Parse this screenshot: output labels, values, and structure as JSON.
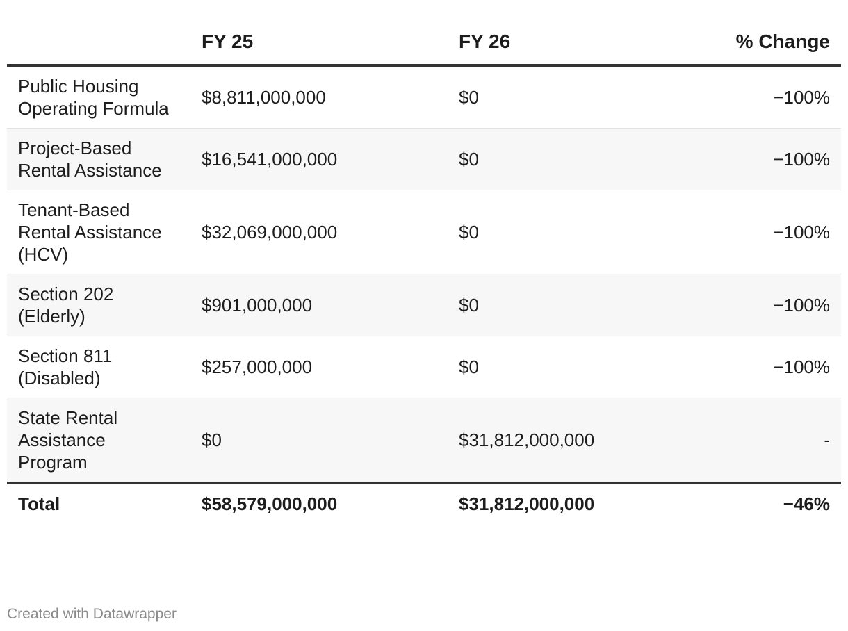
{
  "chart_data": {
    "type": "table",
    "columns": [
      "",
      "FY 25",
      "FY 26",
      "% Change"
    ],
    "rows": [
      {
        "label": "Public Housing Operating Formula",
        "fy25": "$8,811,000,000",
        "fy26": "$0",
        "change": "−100%"
      },
      {
        "label": "Project-Based Rental Assistance",
        "fy25": "$16,541,000,000",
        "fy26": "$0",
        "change": "−100%"
      },
      {
        "label": "Tenant-Based Rental Assistance (HCV)",
        "fy25": "$32,069,000,000",
        "fy26": "$0",
        "change": "−100%"
      },
      {
        "label": "Section 202 (Elderly)",
        "fy25": "$901,000,000",
        "fy26": "$0",
        "change": "−100%"
      },
      {
        "label": "Section 811 (Disabled)",
        "fy25": "$257,000,000",
        "fy26": "$0",
        "change": "−100%"
      },
      {
        "label": "State Rental Assistance Program",
        "fy25": "$0",
        "fy26": "$31,812,000,000",
        "change": "-"
      }
    ],
    "total": {
      "label": "Total",
      "fy25": "$58,579,000,000",
      "fy26": "$31,812,000,000",
      "change": "−46%"
    }
  },
  "footer": {
    "credit": "Created with Datawrapper"
  }
}
